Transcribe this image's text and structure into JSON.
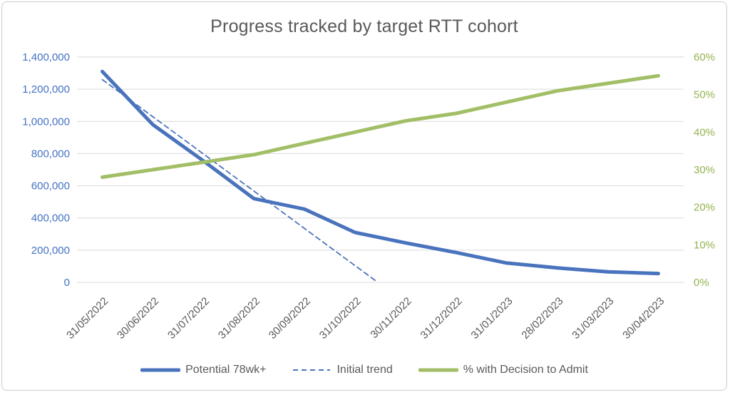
{
  "window": {
    "background": "#ffffff",
    "border_color": "#c9cdd2"
  },
  "chart_data": {
    "type": "line",
    "title": "Progress tracked by target RTT cohort",
    "title_color": "#595959",
    "grid_on": true,
    "gridline_color": "#d9d9d9",
    "categories": [
      "31/05/2022",
      "30/06/2022",
      "31/07/2022",
      "31/08/2022",
      "30/09/2022",
      "31/10/2022",
      "30/11/2022",
      "31/12/2022",
      "31/01/2023",
      "28/02/2023",
      "31/03/2023",
      "30/04/2023"
    ],
    "category_label_color": "#595959",
    "category_label_angle": -45,
    "left_axis": {
      "min": 0,
      "max": 1400000,
      "step": 200000,
      "tick_labels": [
        "1,400,000",
        "1,200,000",
        "1,000,000",
        "800,000",
        "600,000",
        "400,000",
        "200,000",
        "0"
      ],
      "color": "#4472c4"
    },
    "right_axis": {
      "min": 0,
      "max": 60,
      "step": 10,
      "tick_labels": [
        "60%",
        "50%",
        "40%",
        "30%",
        "20%",
        "10%",
        "0%"
      ],
      "color": "#94b34f"
    },
    "series": [
      {
        "name": "Potential 78wk+",
        "axis": "left",
        "style": "solid",
        "color": "#4a73bd",
        "stroke_width": 5,
        "values": [
          1310000,
          980000,
          755000,
          520000,
          455000,
          310000,
          245000,
          185000,
          120000,
          90000,
          65000,
          55000
        ]
      },
      {
        "name": "Initial trend",
        "axis": "left",
        "style": "dashed",
        "color": "#4a73bd",
        "stroke_width": 1.8,
        "x_positions": [
          0,
          1,
          2,
          3,
          4,
          5,
          5.45
        ],
        "values": [
          1260000,
          1029000,
          798000,
          567000,
          335000,
          104000,
          0
        ]
      },
      {
        "name": "% with Decision to Admit",
        "axis": "right",
        "style": "solid",
        "color": "#a2be66",
        "stroke_width": 5,
        "values": [
          28,
          30,
          32,
          34,
          37,
          40,
          43,
          45,
          48,
          51,
          53,
          55
        ]
      }
    ],
    "legend_position": "bottom"
  }
}
